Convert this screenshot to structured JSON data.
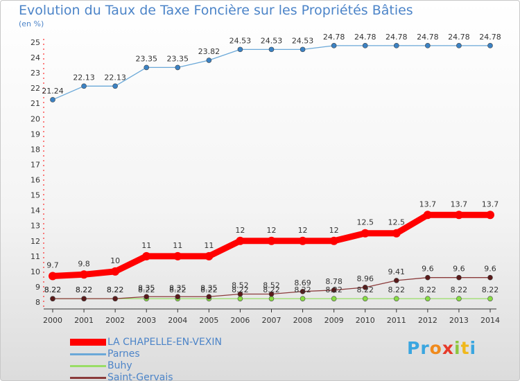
{
  "title": "Evolution du Taux de Taxe Foncière sur les Propriétés Bâties",
  "subtitle": "(en %)",
  "logo": {
    "letters": [
      "P",
      "r",
      "o",
      "x",
      "i",
      "t",
      "i"
    ],
    "colors": [
      "#3aa6e0",
      "#3aa6e0",
      "#f08a1c",
      "#e63a2a",
      "#8dc63f",
      "#f0b81c",
      "#3aa6e0"
    ]
  },
  "chart_data": {
    "type": "line",
    "title": "Evolution du Taux de Taxe Foncière sur les Propriétés Bâties",
    "ylabel": "(en %)",
    "x": [
      "2000",
      "2001",
      "2002",
      "2003",
      "2004",
      "2005",
      "2006",
      "2007",
      "2008",
      "2009",
      "2010",
      "2011",
      "2012",
      "2013",
      "2014"
    ],
    "ylim": [
      8,
      25
    ],
    "yticks": [
      "8",
      "9",
      "10",
      "11",
      "12",
      "13",
      "14",
      "15",
      "16",
      "17",
      "18",
      "19",
      "20",
      "21",
      "22",
      "23",
      "24",
      "25"
    ],
    "grid": false,
    "legend_position": "bottom-left",
    "series": [
      {
        "name": "LA CHAPELLE-EN-VEXIN",
        "color": "#ff0000",
        "values": [
          9.7,
          9.8,
          10,
          11,
          11,
          11,
          12,
          12,
          12,
          12,
          12.5,
          12.5,
          13.7,
          13.7,
          13.7
        ],
        "labels": [
          "9.7",
          "9.8",
          "10",
          "11",
          "11",
          "11",
          "12",
          "12",
          "12",
          "12",
          "12.5",
          "12.5",
          "13.7",
          "13.7",
          "13.7"
        ]
      },
      {
        "name": "Parnes",
        "color": "#6aa8d8",
        "values": [
          21.24,
          22.13,
          22.13,
          23.35,
          23.35,
          23.82,
          24.53,
          24.53,
          24.53,
          24.78,
          24.78,
          24.78,
          24.78,
          24.78,
          24.78
        ],
        "labels": [
          "21.24",
          "22.13",
          "22.13",
          "23.35",
          "23.35",
          "23.82",
          "24.53",
          "24.53",
          "24.53",
          "24.78",
          "24.78",
          "24.78",
          "24.78",
          "24.78",
          "24.78"
        ]
      },
      {
        "name": "Buhy",
        "color": "#99dd66",
        "values": [
          8.22,
          8.22,
          8.22,
          8.22,
          8.22,
          8.22,
          8.22,
          8.22,
          8.22,
          8.22,
          8.22,
          8.22,
          8.22,
          8.22,
          8.22
        ],
        "labels": [
          "8.22",
          "8.22",
          "8.22",
          "8.22",
          "8.22",
          "8.22",
          "8.22",
          "8.22",
          "8.22",
          "8.22",
          "8.22",
          "8.22",
          "8.22",
          "8.22",
          "8.22"
        ]
      },
      {
        "name": "Saint-Gervais",
        "color": "#8a3a3a",
        "values": [
          8.22,
          8.22,
          8.22,
          8.35,
          8.35,
          8.35,
          8.52,
          8.52,
          8.69,
          8.78,
          8.96,
          9.41,
          9.6,
          9.6,
          9.6
        ],
        "labels": [
          "8.22",
          "8.22",
          "8.22",
          "8.35",
          "8.35",
          "8.35",
          "8.52",
          "8.52",
          "8.69",
          "8.78",
          "8.96",
          "9.41",
          "9.6",
          "9.6",
          "9.6"
        ]
      }
    ]
  }
}
